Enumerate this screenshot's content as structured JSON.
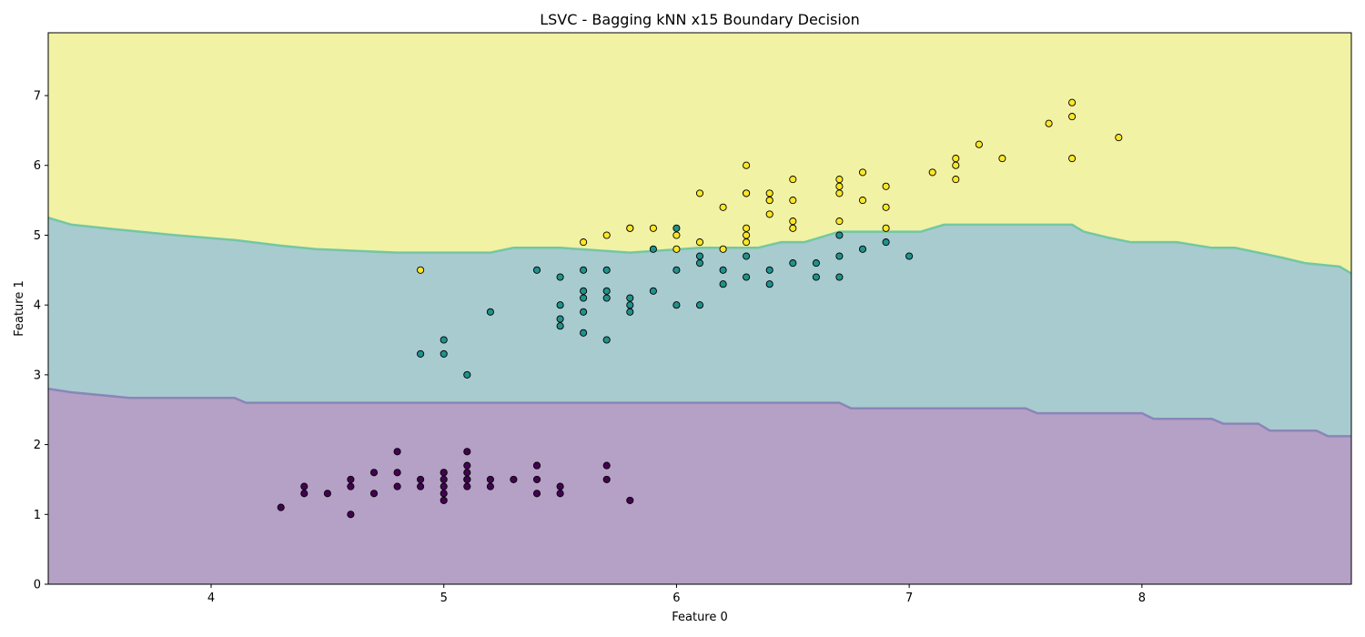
{
  "chart_data": {
    "type": "scatter",
    "title": "LSVC - Bagging kNN x15 Boundary Decision",
    "xlabel": "Feature 0",
    "ylabel": "Feature 1",
    "xlim": [
      3.3,
      8.9
    ],
    "ylim": [
      0,
      7.9
    ],
    "xticks": [
      4,
      5,
      6,
      7,
      8
    ],
    "yticks": [
      0,
      1,
      2,
      3,
      4,
      5,
      6,
      7
    ],
    "grid": false,
    "legend": "none",
    "regions": {
      "colors": [
        "#b4a1c5",
        "#a8cbcf",
        "#f1f2a4"
      ],
      "boundary_colors": [
        "#8a86b8",
        "#74c7a3"
      ],
      "lower_boundary": {
        "x": [
          3.3,
          3.4,
          3.65,
          4.1,
          4.15,
          6.7,
          6.75,
          7.5,
          7.55,
          8.0,
          8.05,
          8.3,
          8.35,
          8.5,
          8.55,
          8.75,
          8.8,
          8.9
        ],
        "y": [
          2.8,
          2.75,
          2.67,
          2.67,
          2.6,
          2.6,
          2.52,
          2.52,
          2.45,
          2.45,
          2.37,
          2.37,
          2.3,
          2.3,
          2.2,
          2.2,
          2.12,
          2.12
        ]
      },
      "upper_boundary": {
        "x": [
          3.3,
          3.4,
          3.6,
          3.85,
          4.1,
          4.3,
          4.45,
          4.8,
          5.2,
          5.3,
          5.5,
          5.8,
          6.1,
          6.35,
          6.45,
          6.55,
          6.7,
          7.05,
          7.15,
          7.7,
          7.75,
          7.85,
          7.95,
          8.15,
          8.3,
          8.4,
          8.5,
          8.6,
          8.7,
          8.85,
          8.9
        ],
        "y": [
          5.25,
          5.15,
          5.08,
          5.0,
          4.93,
          4.85,
          4.8,
          4.75,
          4.75,
          4.82,
          4.82,
          4.75,
          4.82,
          4.82,
          4.9,
          4.9,
          5.05,
          5.05,
          5.15,
          5.15,
          5.05,
          4.97,
          4.9,
          4.9,
          4.82,
          4.82,
          4.75,
          4.68,
          4.6,
          4.55,
          4.45
        ]
      }
    },
    "series": [
      {
        "color": "#440154",
        "x": [
          4.3,
          4.4,
          4.4,
          4.5,
          4.6,
          4.6,
          4.6,
          4.7,
          4.7,
          4.8,
          4.8,
          4.8,
          4.9,
          4.9,
          5.0,
          5.0,
          5.0,
          5.0,
          5.0,
          5.0,
          5.1,
          5.1,
          5.1,
          5.1,
          5.1,
          5.1,
          5.2,
          5.2,
          5.3,
          5.4,
          5.4,
          5.4,
          5.4,
          5.5,
          5.5,
          5.7,
          5.7,
          5.8
        ],
        "y": [
          1.1,
          1.3,
          1.4,
          1.3,
          1.0,
          1.4,
          1.5,
          1.3,
          1.6,
          1.4,
          1.6,
          1.9,
          1.4,
          1.5,
          1.2,
          1.3,
          1.4,
          1.5,
          1.6,
          1.6,
          1.4,
          1.5,
          1.5,
          1.6,
          1.7,
          1.9,
          1.4,
          1.5,
          1.5,
          1.3,
          1.5,
          1.7,
          1.7,
          1.3,
          1.4,
          1.5,
          1.7,
          1.2
        ]
      },
      {
        "color": "#21918c",
        "x": [
          4.9,
          5.0,
          5.0,
          5.1,
          5.2,
          5.4,
          5.5,
          5.5,
          5.5,
          5.5,
          5.6,
          5.6,
          5.6,
          5.6,
          5.6,
          5.7,
          5.7,
          5.7,
          5.7,
          5.8,
          5.8,
          5.8,
          5.9,
          5.9,
          6.0,
          6.0,
          6.0,
          6.1,
          6.1,
          6.1,
          6.2,
          6.2,
          6.3,
          6.3,
          6.4,
          6.4,
          6.5,
          6.6,
          6.6,
          6.7,
          6.7,
          6.7,
          6.8,
          6.9,
          7.0
        ],
        "y": [
          3.3,
          3.3,
          3.5,
          3.0,
          3.9,
          4.5,
          3.7,
          3.8,
          4.0,
          4.4,
          3.6,
          3.9,
          4.1,
          4.2,
          4.5,
          3.5,
          4.1,
          4.2,
          4.5,
          3.9,
          4.0,
          4.1,
          4.2,
          4.8,
          4.0,
          4.5,
          5.1,
          4.0,
          4.6,
          4.7,
          4.3,
          4.5,
          4.4,
          4.7,
          4.3,
          4.5,
          4.6,
          4.4,
          4.6,
          4.4,
          4.7,
          5.0,
          4.8,
          4.9,
          4.7
        ]
      },
      {
        "color": "#fde725",
        "x": [
          4.9,
          5.6,
          5.7,
          5.8,
          5.8,
          5.9,
          6.0,
          6.0,
          6.1,
          6.1,
          6.2,
          6.2,
          6.3,
          6.3,
          6.3,
          6.3,
          6.3,
          6.3,
          6.4,
          6.4,
          6.4,
          6.4,
          6.5,
          6.5,
          6.5,
          6.5,
          6.7,
          6.7,
          6.7,
          6.7,
          6.8,
          6.8,
          6.9,
          6.9,
          6.9,
          7.1,
          7.2,
          7.2,
          7.2,
          7.3,
          7.4,
          7.6,
          7.7,
          7.7,
          7.7,
          7.9
        ],
        "y": [
          4.5,
          4.9,
          5.0,
          5.1,
          5.1,
          5.1,
          4.8,
          5.0,
          4.9,
          5.6,
          4.8,
          5.4,
          4.9,
          5.0,
          5.1,
          5.6,
          5.6,
          6.0,
          5.3,
          5.5,
          5.5,
          5.6,
          5.1,
          5.2,
          5.5,
          5.8,
          5.2,
          5.6,
          5.7,
          5.8,
          5.5,
          5.9,
          5.1,
          5.4,
          5.7,
          5.9,
          5.8,
          6.0,
          6.1,
          6.3,
          6.1,
          6.6,
          6.1,
          6.7,
          6.9,
          6.4
        ]
      }
    ]
  }
}
